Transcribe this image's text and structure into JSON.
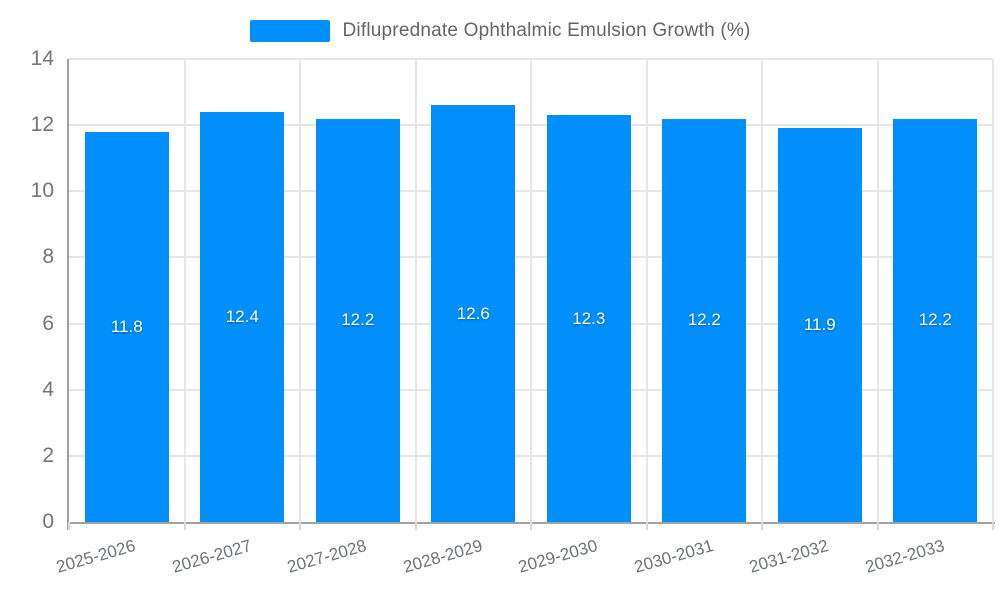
{
  "chart_data": {
    "type": "bar",
    "title": "Difluprednate Ophthalmic Emulsion Growth (%)",
    "xlabel": "",
    "ylabel": "",
    "categories": [
      "2025-2026",
      "2026-2027",
      "2027-2028",
      "2028-2029",
      "2029-2030",
      "2030-2031",
      "2031-2032",
      "2032-2033"
    ],
    "values": [
      11.8,
      12.4,
      12.2,
      12.6,
      12.3,
      12.2,
      11.9,
      12.2
    ],
    "data_labels": [
      "11.8",
      "12.4",
      "12.2",
      "12.6",
      "12.3",
      "12.2",
      "11.9",
      "12.2"
    ],
    "ylim": [
      0,
      14
    ],
    "yticks": [
      0,
      2,
      4,
      6,
      8,
      10,
      12,
      14
    ],
    "ytick_labels": [
      "0",
      "2",
      "4",
      "6",
      "8",
      "10",
      "12",
      "14"
    ],
    "grid": true,
    "legend_position": "top",
    "colors": {
      "bar": "#008FFB",
      "data_label": "#ffffff",
      "axis_text": "#757575",
      "x_axis_text": "#70757a",
      "grid_line": "#e6e6e6",
      "axis_line": "#a2a2a6",
      "legend_text": "#666666",
      "background": "#ffffff"
    }
  }
}
